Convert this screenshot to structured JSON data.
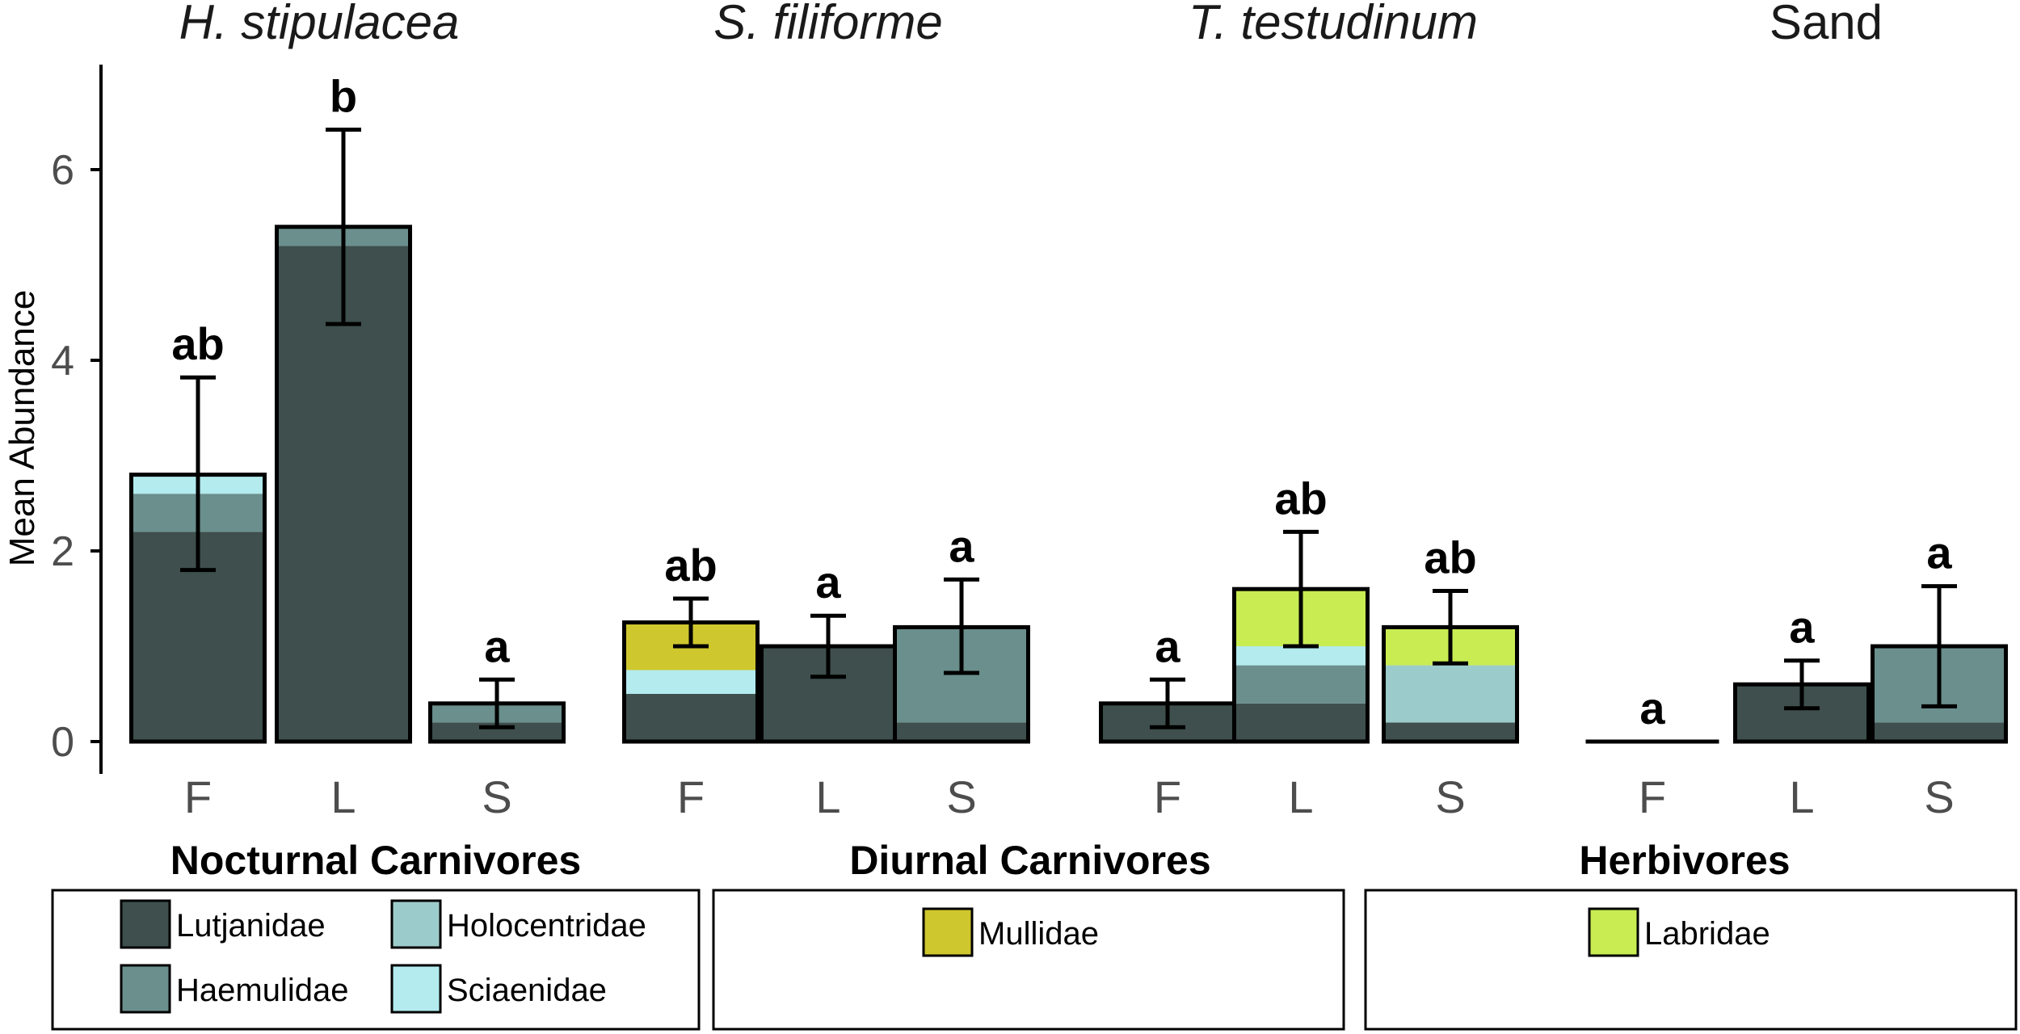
{
  "chart_data": {
    "type": "bar",
    "stacked": true,
    "ylabel": "Mean Abundance",
    "ylim": [
      0,
      7
    ],
    "yticks": [
      0,
      2,
      4,
      6
    ],
    "grid": false,
    "families": [
      {
        "name": "Lutjanidae",
        "color": "#3e4f4d"
      },
      {
        "name": "Haemulidae",
        "color": "#6a8f8d"
      },
      {
        "name": "Holocentridae",
        "color": "#9ccbcb"
      },
      {
        "name": "Sciaenidae",
        "color": "#b3ebef"
      },
      {
        "name": "Mullidae",
        "color": "#cfc72e"
      },
      {
        "name": "Labridae",
        "color": "#c8ec52"
      }
    ],
    "groups": [
      {
        "title": "H. stipulacea",
        "italic": true,
        "bars": [
          {
            "x": "F",
            "segments": {
              "Lutjanidae": 2.2,
              "Haemulidae": 0.4,
              "Sciaenidae": 0.2
            },
            "total": 2.8,
            "err_low": 1.8,
            "err_high": 3.82,
            "letter": "ab"
          },
          {
            "x": "L",
            "segments": {
              "Lutjanidae": 5.2,
              "Haemulidae": 0.2
            },
            "total": 5.4,
            "err_low": 4.38,
            "err_high": 6.42,
            "letter": "b"
          },
          {
            "x": "S",
            "segments": {
              "Lutjanidae": 0.2,
              "Haemulidae": 0.2
            },
            "total": 0.4,
            "err_low": 0.15,
            "err_high": 0.65,
            "letter": "a"
          }
        ]
      },
      {
        "title": "S. filiforme",
        "italic": true,
        "bars": [
          {
            "x": "F",
            "segments": {
              "Lutjanidae": 0.5,
              "Sciaenidae": 0.25,
              "Mullidae": 0.5
            },
            "total": 1.25,
            "err_low": 1.0,
            "err_high": 1.5,
            "letter": "ab"
          },
          {
            "x": "L",
            "segments": {
              "Lutjanidae": 1.0
            },
            "total": 1.0,
            "err_low": 0.68,
            "err_high": 1.32,
            "letter": "a"
          },
          {
            "x": "S",
            "segments": {
              "Lutjanidae": 0.2,
              "Haemulidae": 1.0
            },
            "total": 1.2,
            "err_low": 0.72,
            "err_high": 1.7,
            "letter": "a"
          }
        ]
      },
      {
        "title": "T. testudinum",
        "italic": true,
        "bars": [
          {
            "x": "F",
            "segments": {
              "Lutjanidae": 0.4
            },
            "total": 0.4,
            "err_low": 0.15,
            "err_high": 0.65,
            "letter": "a"
          },
          {
            "x": "L",
            "segments": {
              "Lutjanidae": 0.4,
              "Haemulidae": 0.4,
              "Sciaenidae": 0.2,
              "Labridae": 0.6
            },
            "total": 1.6,
            "err_low": 1.0,
            "err_high": 2.2,
            "letter": "ab"
          },
          {
            "x": "S",
            "segments": {
              "Lutjanidae": 0.2,
              "Holocentridae": 0.6,
              "Labridae": 0.4
            },
            "total": 1.2,
            "err_low": 0.82,
            "err_high": 1.58,
            "letter": "ab"
          }
        ]
      },
      {
        "title": "Sand",
        "italic": false,
        "bars": [
          {
            "x": "F",
            "segments": {},
            "total": 0,
            "err_low": 0,
            "err_high": 0,
            "letter": "a"
          },
          {
            "x": "L",
            "segments": {
              "Lutjanidae": 0.6
            },
            "total": 0.6,
            "err_low": 0.35,
            "err_high": 0.85,
            "letter": "a"
          },
          {
            "x": "S",
            "segments": {
              "Lutjanidae": 0.2,
              "Haemulidae": 0.8
            },
            "total": 1.0,
            "err_low": 0.37,
            "err_high": 1.63,
            "letter": "a"
          }
        ]
      }
    ],
    "legends": [
      {
        "title": "Nocturnal Carnivores",
        "items": [
          "Lutjanidae",
          "Holocentridae",
          "Haemulidae",
          "Sciaenidae"
        ]
      },
      {
        "title": "Diurnal Carnivores",
        "items": [
          "Mullidae"
        ]
      },
      {
        "title": "Herbivores",
        "items": [
          "Labridae"
        ]
      }
    ]
  }
}
